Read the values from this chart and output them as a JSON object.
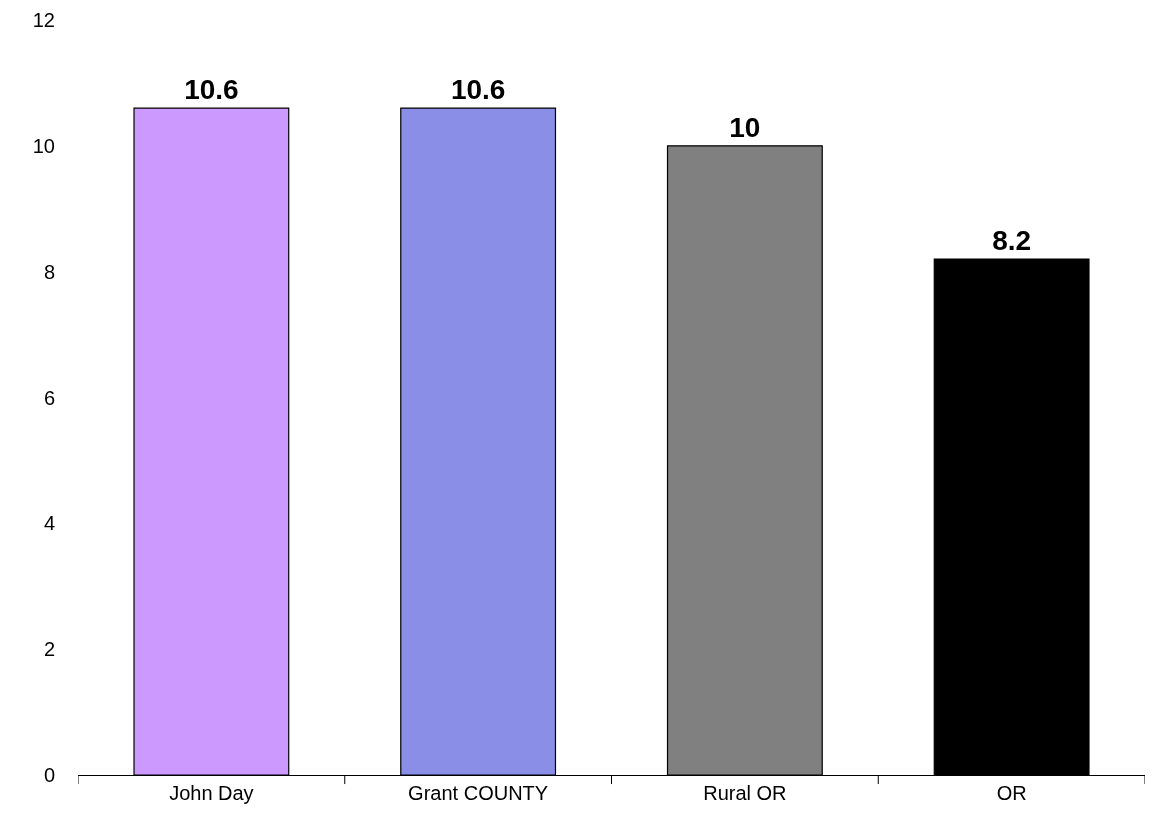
{
  "chart_data": {
    "type": "bar",
    "categories": [
      "John Day",
      "Grant COUNTY",
      "Rural OR",
      "OR"
    ],
    "values": [
      10.6,
      10.6,
      10,
      8.2
    ],
    "colors": [
      "#cc99ff",
      "#8b8ee6",
      "#808080",
      "#000000"
    ],
    "ylim": [
      0,
      12
    ],
    "yticks": [
      0,
      2,
      4,
      6,
      8,
      10,
      12
    ],
    "grid": false,
    "data_labels": true
  }
}
